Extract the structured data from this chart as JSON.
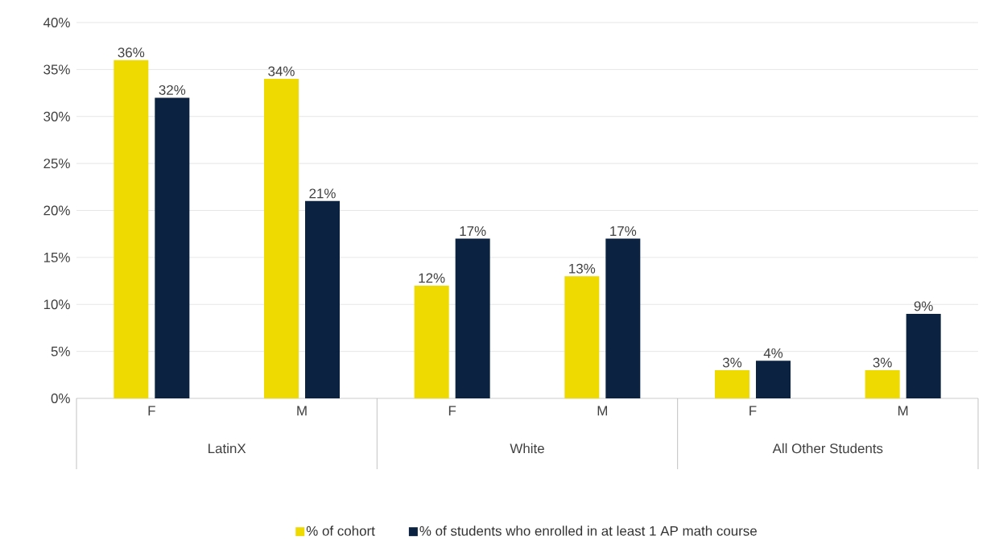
{
  "chart_data": {
    "type": "bar",
    "categories": [
      "F",
      "M",
      "F",
      "M",
      "F",
      "M"
    ],
    "series": [
      {
        "name": "% of cohort",
        "color": "#eed900",
        "values": [
          36,
          34,
          12,
          13,
          3,
          3
        ],
        "value_labels": [
          "36%",
          "34%",
          "12%",
          "13%",
          "3%",
          "3%"
        ]
      },
      {
        "name": "% of students who enrolled in at least 1 AP math course",
        "color": "#0b2340",
        "values": [
          32,
          21,
          17,
          17,
          4,
          9
        ],
        "value_labels": [
          "32%",
          "21%",
          "17%",
          "17%",
          "4%",
          "9%"
        ]
      }
    ],
    "annotations": [
      "LatinX",
      "White",
      "All Other Students"
    ],
    "ylim": [
      0,
      40
    ],
    "yticks": [
      {
        "value": 0,
        "label": "0%"
      },
      {
        "value": 5,
        "label": "5%"
      },
      {
        "value": 10,
        "label": "10%"
      },
      {
        "value": 15,
        "label": "15%"
      },
      {
        "value": 20,
        "label": "20%"
      },
      {
        "value": 25,
        "label": "25%"
      },
      {
        "value": 30,
        "label": "30%"
      },
      {
        "value": 35,
        "label": "35%"
      },
      {
        "value": 40,
        "label": "40%"
      }
    ],
    "grid": "y",
    "legend": "bottom"
  }
}
